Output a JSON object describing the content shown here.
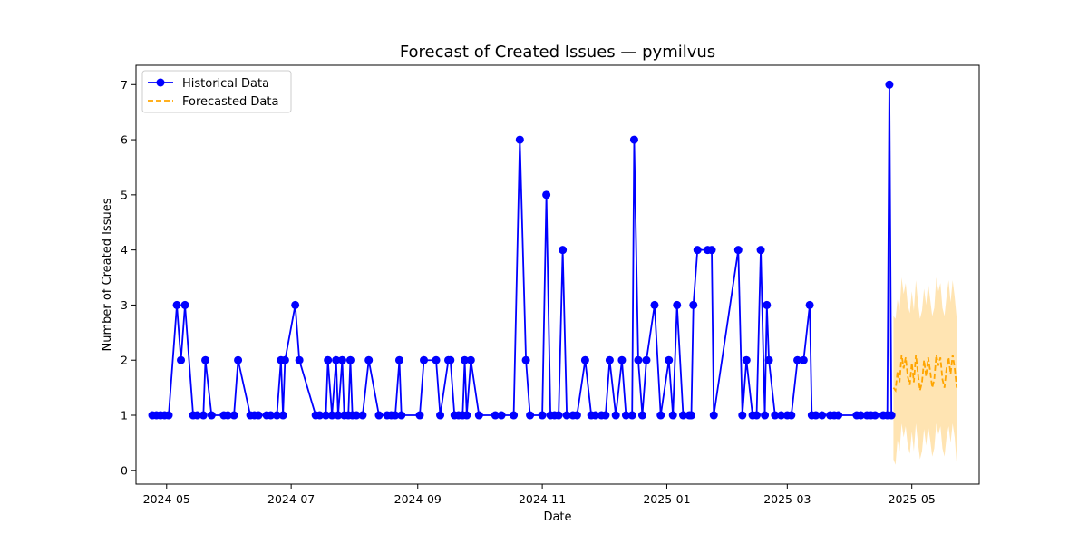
{
  "chart_data": {
    "type": "line",
    "title": "Forecast of Created Issues — pymilvus",
    "xlabel": "Date",
    "ylabel": "Number of Created Issues",
    "x_ticks": [
      "2024-05",
      "2024-07",
      "2024-09",
      "2024-11",
      "2025-01",
      "2025-03",
      "2025-05"
    ],
    "y_ticks": [
      0,
      1,
      2,
      3,
      4,
      5,
      6,
      7
    ],
    "xlim": [
      "2024-04-16",
      "2025-06-03"
    ],
    "ylim": [
      -0.25,
      7.35
    ],
    "legend": {
      "position": "top-left",
      "entries": [
        "Historical Data",
        "Forecasted Data"
      ]
    },
    "colors": {
      "historical": "#0000ff",
      "forecast": "#ffa500",
      "band": "#ffa500"
    },
    "series": [
      {
        "name": "Historical Data",
        "style": "solid-line-circle-markers",
        "points": [
          [
            "2024-04-24",
            1
          ],
          [
            "2024-04-26",
            1
          ],
          [
            "2024-04-28",
            1
          ],
          [
            "2024-04-30",
            1
          ],
          [
            "2024-05-02",
            1
          ],
          [
            "2024-05-06",
            3
          ],
          [
            "2024-05-08",
            2
          ],
          [
            "2024-05-10",
            3
          ],
          [
            "2024-05-14",
            1
          ],
          [
            "2024-05-16",
            1
          ],
          [
            "2024-05-19",
            1
          ],
          [
            "2024-05-20",
            2
          ],
          [
            "2024-05-23",
            1
          ],
          [
            "2024-05-29",
            1
          ],
          [
            "2024-05-31",
            1
          ],
          [
            "2024-06-03",
            1
          ],
          [
            "2024-06-05",
            2
          ],
          [
            "2024-06-11",
            1
          ],
          [
            "2024-06-13",
            1
          ],
          [
            "2024-06-15",
            1
          ],
          [
            "2024-06-19",
            1
          ],
          [
            "2024-06-21",
            1
          ],
          [
            "2024-06-24",
            1
          ],
          [
            "2024-06-26",
            2
          ],
          [
            "2024-06-27",
            1
          ],
          [
            "2024-06-28",
            2
          ],
          [
            "2024-07-03",
            3
          ],
          [
            "2024-07-05",
            2
          ],
          [
            "2024-07-13",
            1
          ],
          [
            "2024-07-15",
            1
          ],
          [
            "2024-07-18",
            1
          ],
          [
            "2024-07-19",
            2
          ],
          [
            "2024-07-21",
            1
          ],
          [
            "2024-07-23",
            2
          ],
          [
            "2024-07-24",
            1
          ],
          [
            "2024-07-26",
            2
          ],
          [
            "2024-07-27",
            1
          ],
          [
            "2024-07-29",
            1
          ],
          [
            "2024-07-30",
            2
          ],
          [
            "2024-07-31",
            1
          ],
          [
            "2024-08-02",
            1
          ],
          [
            "2024-08-05",
            1
          ],
          [
            "2024-08-08",
            2
          ],
          [
            "2024-08-13",
            1
          ],
          [
            "2024-08-17",
            1
          ],
          [
            "2024-08-19",
            1
          ],
          [
            "2024-08-21",
            1
          ],
          [
            "2024-08-23",
            2
          ],
          [
            "2024-08-24",
            1
          ],
          [
            "2024-09-02",
            1
          ],
          [
            "2024-09-04",
            2
          ],
          [
            "2024-09-10",
            2
          ],
          [
            "2024-09-12",
            1
          ],
          [
            "2024-09-16",
            2
          ],
          [
            "2024-09-17",
            2
          ],
          [
            "2024-09-19",
            1
          ],
          [
            "2024-09-21",
            1
          ],
          [
            "2024-09-23",
            1
          ],
          [
            "2024-09-24",
            2
          ],
          [
            "2024-09-25",
            1
          ],
          [
            "2024-09-27",
            2
          ],
          [
            "2024-10-01",
            1
          ],
          [
            "2024-10-09",
            1
          ],
          [
            "2024-10-12",
            1
          ],
          [
            "2024-10-18",
            1
          ],
          [
            "2024-10-21",
            6
          ],
          [
            "2024-10-24",
            2
          ],
          [
            "2024-10-26",
            1
          ],
          [
            "2024-11-01",
            1
          ],
          [
            "2024-11-03",
            5
          ],
          [
            "2024-11-05",
            1
          ],
          [
            "2024-11-07",
            1
          ],
          [
            "2024-11-09",
            1
          ],
          [
            "2024-11-11",
            4
          ],
          [
            "2024-11-13",
            1
          ],
          [
            "2024-11-16",
            1
          ],
          [
            "2024-11-18",
            1
          ],
          [
            "2024-11-22",
            2
          ],
          [
            "2024-11-25",
            1
          ],
          [
            "2024-11-27",
            1
          ],
          [
            "2024-11-30",
            1
          ],
          [
            "2024-12-02",
            1
          ],
          [
            "2024-12-04",
            2
          ],
          [
            "2024-12-07",
            1
          ],
          [
            "2024-12-10",
            2
          ],
          [
            "2024-12-12",
            1
          ],
          [
            "2024-12-15",
            1
          ],
          [
            "2024-12-16",
            6
          ],
          [
            "2024-12-18",
            2
          ],
          [
            "2024-12-20",
            1
          ],
          [
            "2024-12-22",
            2
          ],
          [
            "2024-12-26",
            3
          ],
          [
            "2024-12-29",
            1
          ],
          [
            "2025-01-02",
            2
          ],
          [
            "2025-01-04",
            1
          ],
          [
            "2025-01-06",
            3
          ],
          [
            "2025-01-09",
            1
          ],
          [
            "2025-01-12",
            1
          ],
          [
            "2025-01-13",
            1
          ],
          [
            "2025-01-14",
            3
          ],
          [
            "2025-01-16",
            4
          ],
          [
            "2025-01-21",
            4
          ],
          [
            "2025-01-23",
            4
          ],
          [
            "2025-01-24",
            1
          ],
          [
            "2025-02-05",
            4
          ],
          [
            "2025-02-07",
            1
          ],
          [
            "2025-02-09",
            2
          ],
          [
            "2025-02-12",
            1
          ],
          [
            "2025-02-14",
            1
          ],
          [
            "2025-02-16",
            4
          ],
          [
            "2025-02-18",
            1
          ],
          [
            "2025-02-19",
            3
          ],
          [
            "2025-02-20",
            2
          ],
          [
            "2025-02-23",
            1
          ],
          [
            "2025-02-26",
            1
          ],
          [
            "2025-03-01",
            1
          ],
          [
            "2025-03-03",
            1
          ],
          [
            "2025-03-06",
            2
          ],
          [
            "2025-03-09",
            2
          ],
          [
            "2025-03-12",
            3
          ],
          [
            "2025-03-13",
            1
          ],
          [
            "2025-03-15",
            1
          ],
          [
            "2025-03-18",
            1
          ],
          [
            "2025-03-22",
            1
          ],
          [
            "2025-03-24",
            1
          ],
          [
            "2025-03-26",
            1
          ],
          [
            "2025-04-04",
            1
          ],
          [
            "2025-04-06",
            1
          ],
          [
            "2025-04-09",
            1
          ],
          [
            "2025-04-11",
            1
          ],
          [
            "2025-04-13",
            1
          ],
          [
            "2025-04-17",
            1
          ],
          [
            "2025-04-19",
            1
          ],
          [
            "2025-04-20",
            7
          ],
          [
            "2025-04-21",
            1
          ]
        ]
      },
      {
        "name": "Forecasted Data",
        "style": "dashed-line-with-band",
        "points": [
          [
            "2025-04-22",
            1.5
          ],
          [
            "2025-04-23",
            1.45
          ],
          [
            "2025-04-24",
            1.8
          ],
          [
            "2025-04-25",
            1.6
          ],
          [
            "2025-04-26",
            2.1
          ],
          [
            "2025-04-27",
            1.85
          ],
          [
            "2025-04-28",
            2.05
          ],
          [
            "2025-04-29",
            1.7
          ],
          [
            "2025-04-30",
            1.55
          ],
          [
            "2025-05-01",
            1.95
          ],
          [
            "2025-05-02",
            1.6
          ],
          [
            "2025-05-03",
            2.1
          ],
          [
            "2025-05-04",
            1.75
          ],
          [
            "2025-05-05",
            1.45
          ],
          [
            "2025-05-06",
            1.6
          ],
          [
            "2025-05-07",
            2.0
          ],
          [
            "2025-05-08",
            1.7
          ],
          [
            "2025-05-09",
            2.05
          ],
          [
            "2025-05-10",
            1.8
          ],
          [
            "2025-05-11",
            1.5
          ],
          [
            "2025-05-12",
            1.65
          ],
          [
            "2025-05-13",
            2.1
          ],
          [
            "2025-05-14",
            1.9
          ],
          [
            "2025-05-15",
            2.05
          ],
          [
            "2025-05-16",
            1.65
          ],
          [
            "2025-05-17",
            1.5
          ],
          [
            "2025-05-18",
            1.85
          ],
          [
            "2025-05-19",
            2.05
          ],
          [
            "2025-05-20",
            1.75
          ],
          [
            "2025-05-21",
            2.1
          ],
          [
            "2025-05-22",
            1.85
          ],
          [
            "2025-05-23",
            1.5
          ]
        ],
        "band_lower": [
          0.2,
          0.1,
          0.55,
          0.35,
          0.85,
          0.6,
          0.8,
          0.45,
          0.3,
          0.7,
          0.35,
          0.85,
          0.5,
          0.2,
          0.35,
          0.75,
          0.45,
          0.8,
          0.55,
          0.25,
          0.4,
          0.85,
          0.65,
          0.8,
          0.4,
          0.25,
          0.6,
          0.8,
          0.5,
          0.85,
          0.6,
          0.1
        ],
        "band_upper": [
          2.8,
          2.75,
          3.1,
          2.9,
          3.5,
          3.2,
          3.4,
          3.0,
          2.85,
          3.25,
          2.9,
          3.45,
          3.05,
          2.75,
          2.9,
          3.3,
          3.0,
          3.4,
          3.1,
          2.8,
          2.95,
          3.5,
          3.25,
          3.4,
          2.95,
          2.8,
          3.15,
          3.45,
          3.05,
          3.45,
          3.15,
          2.75
        ]
      }
    ]
  }
}
